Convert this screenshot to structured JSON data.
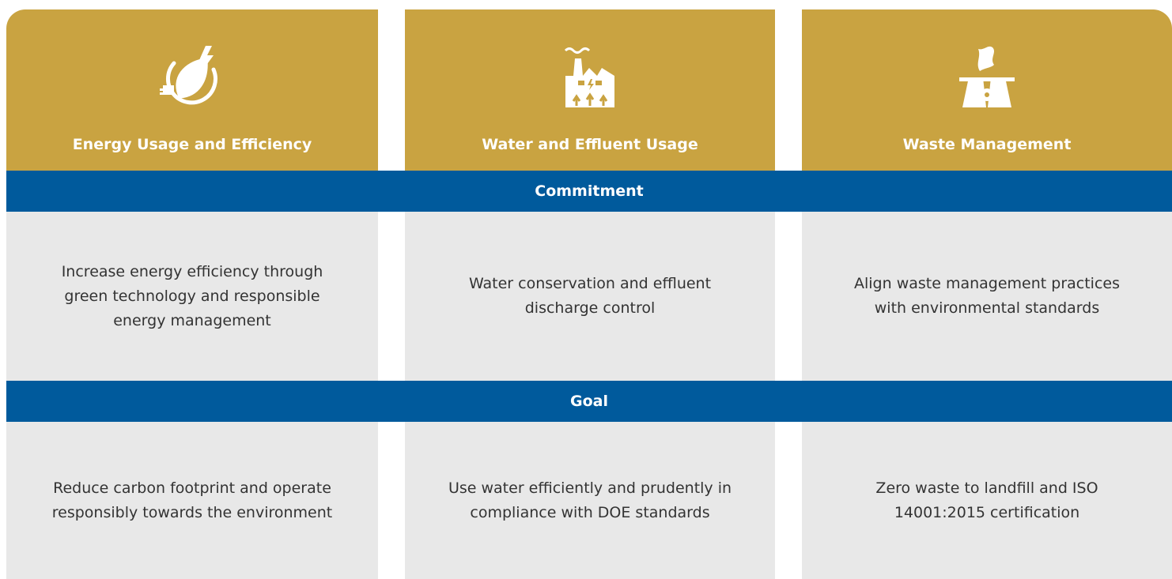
{
  "columns": [
    {
      "title": "Energy Usage and Efficiency",
      "commitment": "Increase energy efficiency through green technology and responsible energy management",
      "goal": "Reduce carbon footprint and operate responsibly towards the environment"
    },
    {
      "title": "Water and Effluent Usage",
      "commitment": "Water conservation and effluent discharge control",
      "goal": "Use water efficiently and prudently in compliance with DOE standards"
    },
    {
      "title": "Waste Management",
      "commitment": "Align waste management practices with environmental standards",
      "goal": "Zero waste to landfill and ISO 14001:2015 certification"
    }
  ],
  "bands": {
    "commitment": "Commitment",
    "goal": "Goal"
  }
}
